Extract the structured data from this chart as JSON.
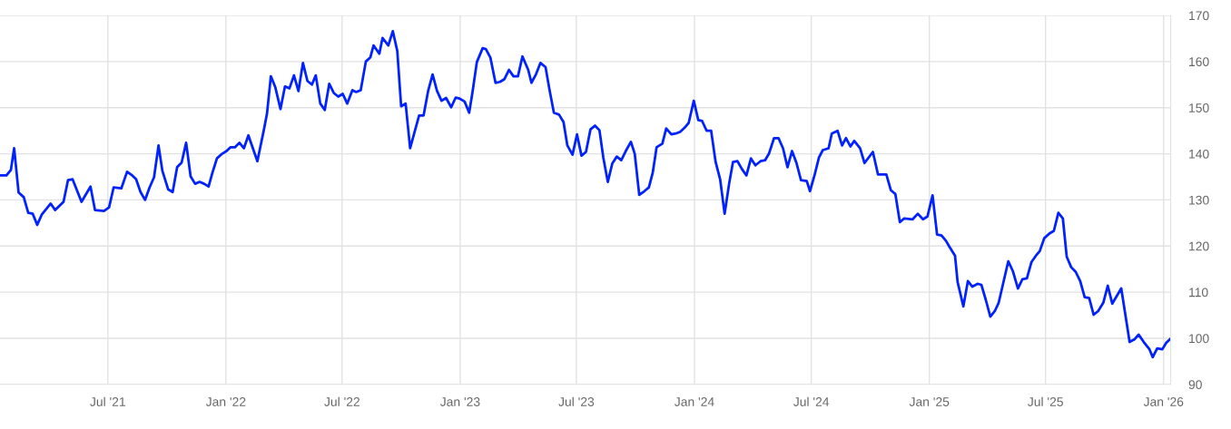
{
  "chart_data": {
    "type": "line",
    "x": [
      "2021-01-14",
      "2021-01-24",
      "2021-01-31",
      "2021-02-05",
      "2021-02-12",
      "2021-02-20",
      "2021-02-27",
      "2021-03-06",
      "2021-03-13",
      "2021-03-20",
      "2021-04-03",
      "2021-04-10",
      "2021-04-23",
      "2021-04-30",
      "2021-05-07",
      "2021-05-21",
      "2021-05-30",
      "2021-06-04",
      "2021-06-11",
      "2021-06-25",
      "2021-07-03",
      "2021-07-10",
      "2021-07-22",
      "2021-07-31",
      "2021-08-08",
      "2021-08-14",
      "2021-08-21",
      "2021-08-28",
      "2021-09-04",
      "2021-09-11",
      "2021-09-18",
      "2021-09-24",
      "2021-10-03",
      "2021-10-10",
      "2021-10-17",
      "2021-10-24",
      "2021-10-31",
      "2021-11-07",
      "2021-11-14",
      "2021-11-21",
      "2021-11-28",
      "2021-12-05",
      "2021-12-11",
      "2021-12-18",
      "2021-12-26",
      "2022-01-02",
      "2022-01-08",
      "2022-01-15",
      "2022-01-22",
      "2022-01-29",
      "2022-02-05",
      "2022-02-19",
      "2022-03-01",
      "2022-03-06",
      "2022-03-12",
      "2022-03-19",
      "2022-03-27",
      "2022-04-03",
      "2022-04-10",
      "2022-04-17",
      "2022-04-24",
      "2022-05-01",
      "2022-05-08",
      "2022-05-15",
      "2022-05-21",
      "2022-05-28",
      "2022-06-04",
      "2022-06-11",
      "2022-06-18",
      "2022-06-25",
      "2022-07-02",
      "2022-07-09",
      "2022-07-17",
      "2022-07-23",
      "2022-07-30",
      "2022-08-07",
      "2022-08-14",
      "2022-08-19",
      "2022-08-28",
      "2022-09-02",
      "2022-09-11",
      "2022-09-18",
      "2022-09-25",
      "2022-10-01",
      "2022-10-08",
      "2022-10-15",
      "2022-10-29",
      "2022-11-05",
      "2022-11-12",
      "2022-11-19",
      "2022-11-26",
      "2022-12-03",
      "2022-12-10",
      "2022-12-18",
      "2022-12-25",
      "2022-12-31",
      "2023-01-08",
      "2023-01-15",
      "2023-01-20",
      "2023-01-27",
      "2023-02-05",
      "2023-02-10",
      "2023-02-17",
      "2023-02-25",
      "2023-03-04",
      "2023-03-11",
      "2023-03-18",
      "2023-03-25",
      "2023-04-01",
      "2023-04-08",
      "2023-04-17",
      "2023-04-22",
      "2023-04-29",
      "2023-05-06",
      "2023-05-14",
      "2023-05-20",
      "2023-05-27",
      "2023-06-04",
      "2023-06-11",
      "2023-06-17",
      "2023-06-25",
      "2023-07-02",
      "2023-07-09",
      "2023-07-16",
      "2023-07-23",
      "2023-07-30",
      "2023-08-06",
      "2023-08-12",
      "2023-08-19",
      "2023-08-26",
      "2023-09-02",
      "2023-09-09",
      "2023-09-16",
      "2023-09-24",
      "2023-09-30",
      "2023-10-07",
      "2023-10-15",
      "2023-10-22",
      "2023-10-28",
      "2023-11-03",
      "2023-11-12",
      "2023-11-18",
      "2023-11-26",
      "2023-12-03",
      "2023-12-10",
      "2023-12-17",
      "2023-12-23",
      "2023-12-31",
      "2024-01-07",
      "2024-01-13",
      "2024-01-20",
      "2024-01-27",
      "2024-02-03",
      "2024-02-10",
      "2024-02-17",
      "2024-02-24",
      "2024-03-01",
      "2024-03-08",
      "2024-03-15",
      "2024-03-22",
      "2024-03-29",
      "2024-04-05",
      "2024-04-13",
      "2024-04-20",
      "2024-04-26",
      "2024-05-04",
      "2024-05-11",
      "2024-05-18",
      "2024-05-25",
      "2024-06-01",
      "2024-06-08",
      "2024-06-15",
      "2024-06-24",
      "2024-06-29",
      "2024-07-06",
      "2024-07-13",
      "2024-07-19",
      "2024-07-28",
      "2024-08-02",
      "2024-08-11",
      "2024-08-18",
      "2024-08-24",
      "2024-08-31",
      "2024-09-06",
      "2024-09-15",
      "2024-09-22",
      "2024-10-05",
      "2024-10-13",
      "2024-10-26",
      "2024-11-02",
      "2024-11-09",
      "2024-11-16",
      "2024-11-23",
      "2024-12-06",
      "2024-12-14",
      "2024-12-22",
      "2024-12-29",
      "2025-01-06",
      "2025-01-13",
      "2025-01-20",
      "2025-01-27",
      "2025-02-01",
      "2025-02-10",
      "2025-02-14",
      "2025-02-23",
      "2025-03-02",
      "2025-03-09",
      "2025-03-17",
      "2025-03-23",
      "2025-03-30",
      "2025-04-06",
      "2025-04-13",
      "2025-04-19",
      "2025-05-04",
      "2025-05-11",
      "2025-05-19",
      "2025-05-26",
      "2025-06-02",
      "2025-06-09",
      "2025-06-16",
      "2025-06-22",
      "2025-06-29",
      "2025-07-07",
      "2025-07-14",
      "2025-07-21",
      "2025-07-28",
      "2025-08-03",
      "2025-08-10",
      "2025-08-17",
      "2025-08-24",
      "2025-08-31",
      "2025-09-07",
      "2025-09-14",
      "2025-09-21",
      "2025-09-29",
      "2025-10-06",
      "2025-10-13",
      "2025-10-27",
      "2025-11-09",
      "2025-11-17",
      "2025-11-23",
      "2025-12-01",
      "2025-12-10",
      "2025-12-15",
      "2025-12-22",
      "2025-12-30",
      "2026-01-05",
      "2026-01-11"
    ],
    "series": [
      {
        "color": "#0022ff",
        "values": [
          135.3,
          135.3,
          136.5,
          141.2,
          131.6,
          130.6,
          127.2,
          127,
          124.6,
          126.8,
          129.2,
          127.8,
          129.6,
          134.3,
          134.5,
          129.6,
          131.7,
          132.9,
          127.8,
          127.6,
          128.4,
          132.7,
          132.5,
          136.1,
          135.3,
          134.5,
          131.7,
          130,
          132.7,
          134.9,
          141.8,
          136.3,
          132.3,
          131.7,
          137.1,
          138.1,
          142.4,
          135.1,
          133.5,
          133.9,
          133.5,
          132.9,
          135.9,
          139,
          140,
          140.6,
          141.4,
          141.4,
          142.4,
          141.2,
          144,
          138.4,
          145.1,
          148.7,
          156.8,
          154.4,
          149.7,
          154.6,
          154.2,
          157,
          153.6,
          159.7,
          155.8,
          155,
          157,
          150.9,
          149.5,
          155.2,
          153.2,
          152.4,
          153,
          150.9,
          153.8,
          153.4,
          153.8,
          160,
          160.9,
          163.5,
          161.7,
          165.1,
          163.5,
          166.6,
          162.3,
          150.3,
          150.9,
          141.2,
          148.3,
          148.3,
          153.6,
          157.2,
          153.6,
          151.5,
          152.1,
          150.1,
          152.2,
          152,
          151.3,
          148.9,
          153.2,
          159.9,
          162.9,
          162.7,
          160.9,
          155.4,
          155.6,
          156.2,
          158.2,
          156.8,
          156.8,
          161.1,
          158.2,
          155.4,
          157.2,
          159.7,
          158.8,
          154,
          148.9,
          148.5,
          146.9,
          141.8,
          139.8,
          144.2,
          139.6,
          140.4,
          145.3,
          146.1,
          145.1,
          139.2,
          133.9,
          137.9,
          139.4,
          138.6,
          140.6,
          142.6,
          140,
          131.1,
          131.9,
          132.7,
          135.9,
          141.4,
          142.2,
          145.5,
          144.2,
          144.4,
          144.8,
          145.7,
          146.7,
          151.5,
          147.3,
          147.1,
          145,
          145,
          138.2,
          134.5,
          127,
          133.5,
          138.2,
          138.4,
          136.7,
          135.3,
          139,
          137.5,
          138.4,
          138.6,
          140,
          143.4,
          143.4,
          141.2,
          137.1,
          140.6,
          138,
          134.3,
          134.1,
          131.9,
          135.3,
          139.2,
          140.8,
          141.2,
          144.4,
          145,
          141.8,
          143.4,
          141.6,
          142.8,
          141.2,
          138,
          140.4,
          135.5,
          135.5,
          132.1,
          131.3,
          125.2,
          126,
          125.8,
          127,
          125.8,
          126.4,
          131,
          122.5,
          122.3,
          121.1,
          119.9,
          117.9,
          112.2,
          106.9,
          112.4,
          111.2,
          111.8,
          111.6,
          108.3,
          104.7,
          105.9,
          107.7,
          116.7,
          114.6,
          110.8,
          112.8,
          113,
          116.5,
          117.9,
          118.9,
          121.7,
          122.7,
          123.3,
          127.2,
          126,
          117.7,
          115.4,
          114.4,
          112.4,
          108.9,
          108.7,
          105.1,
          105.9,
          107.7,
          111.4,
          107.5,
          110.8,
          99.2,
          99.8,
          100.8,
          99.2,
          97.6,
          95.9,
          97.8,
          97.6,
          99,
          99.8
        ]
      }
    ],
    "xlim": [
      "2021-01-14",
      "2026-01-12"
    ],
    "xticks": [
      {
        "value": "2021-07-01",
        "label": "Jul '21"
      },
      {
        "value": "2022-01-01",
        "label": "Jan '22"
      },
      {
        "value": "2022-07-01",
        "label": "Jul '22"
      },
      {
        "value": "2023-01-01",
        "label": "Jan '23"
      },
      {
        "value": "2023-07-01",
        "label": "Jul '23"
      },
      {
        "value": "2024-01-01",
        "label": "Jan '24"
      },
      {
        "value": "2024-07-01",
        "label": "Jul '24"
      },
      {
        "value": "2025-01-01",
        "label": "Jan '25"
      },
      {
        "value": "2025-07-01",
        "label": "Jul '25"
      },
      {
        "value": "2026-01-01",
        "label": "Jan '26"
      }
    ],
    "ylim": [
      90,
      170
    ],
    "yticks": [
      90,
      100,
      110,
      120,
      130,
      140,
      150,
      160,
      170
    ],
    "grid": true,
    "marker": "none",
    "line_style": "solid"
  }
}
